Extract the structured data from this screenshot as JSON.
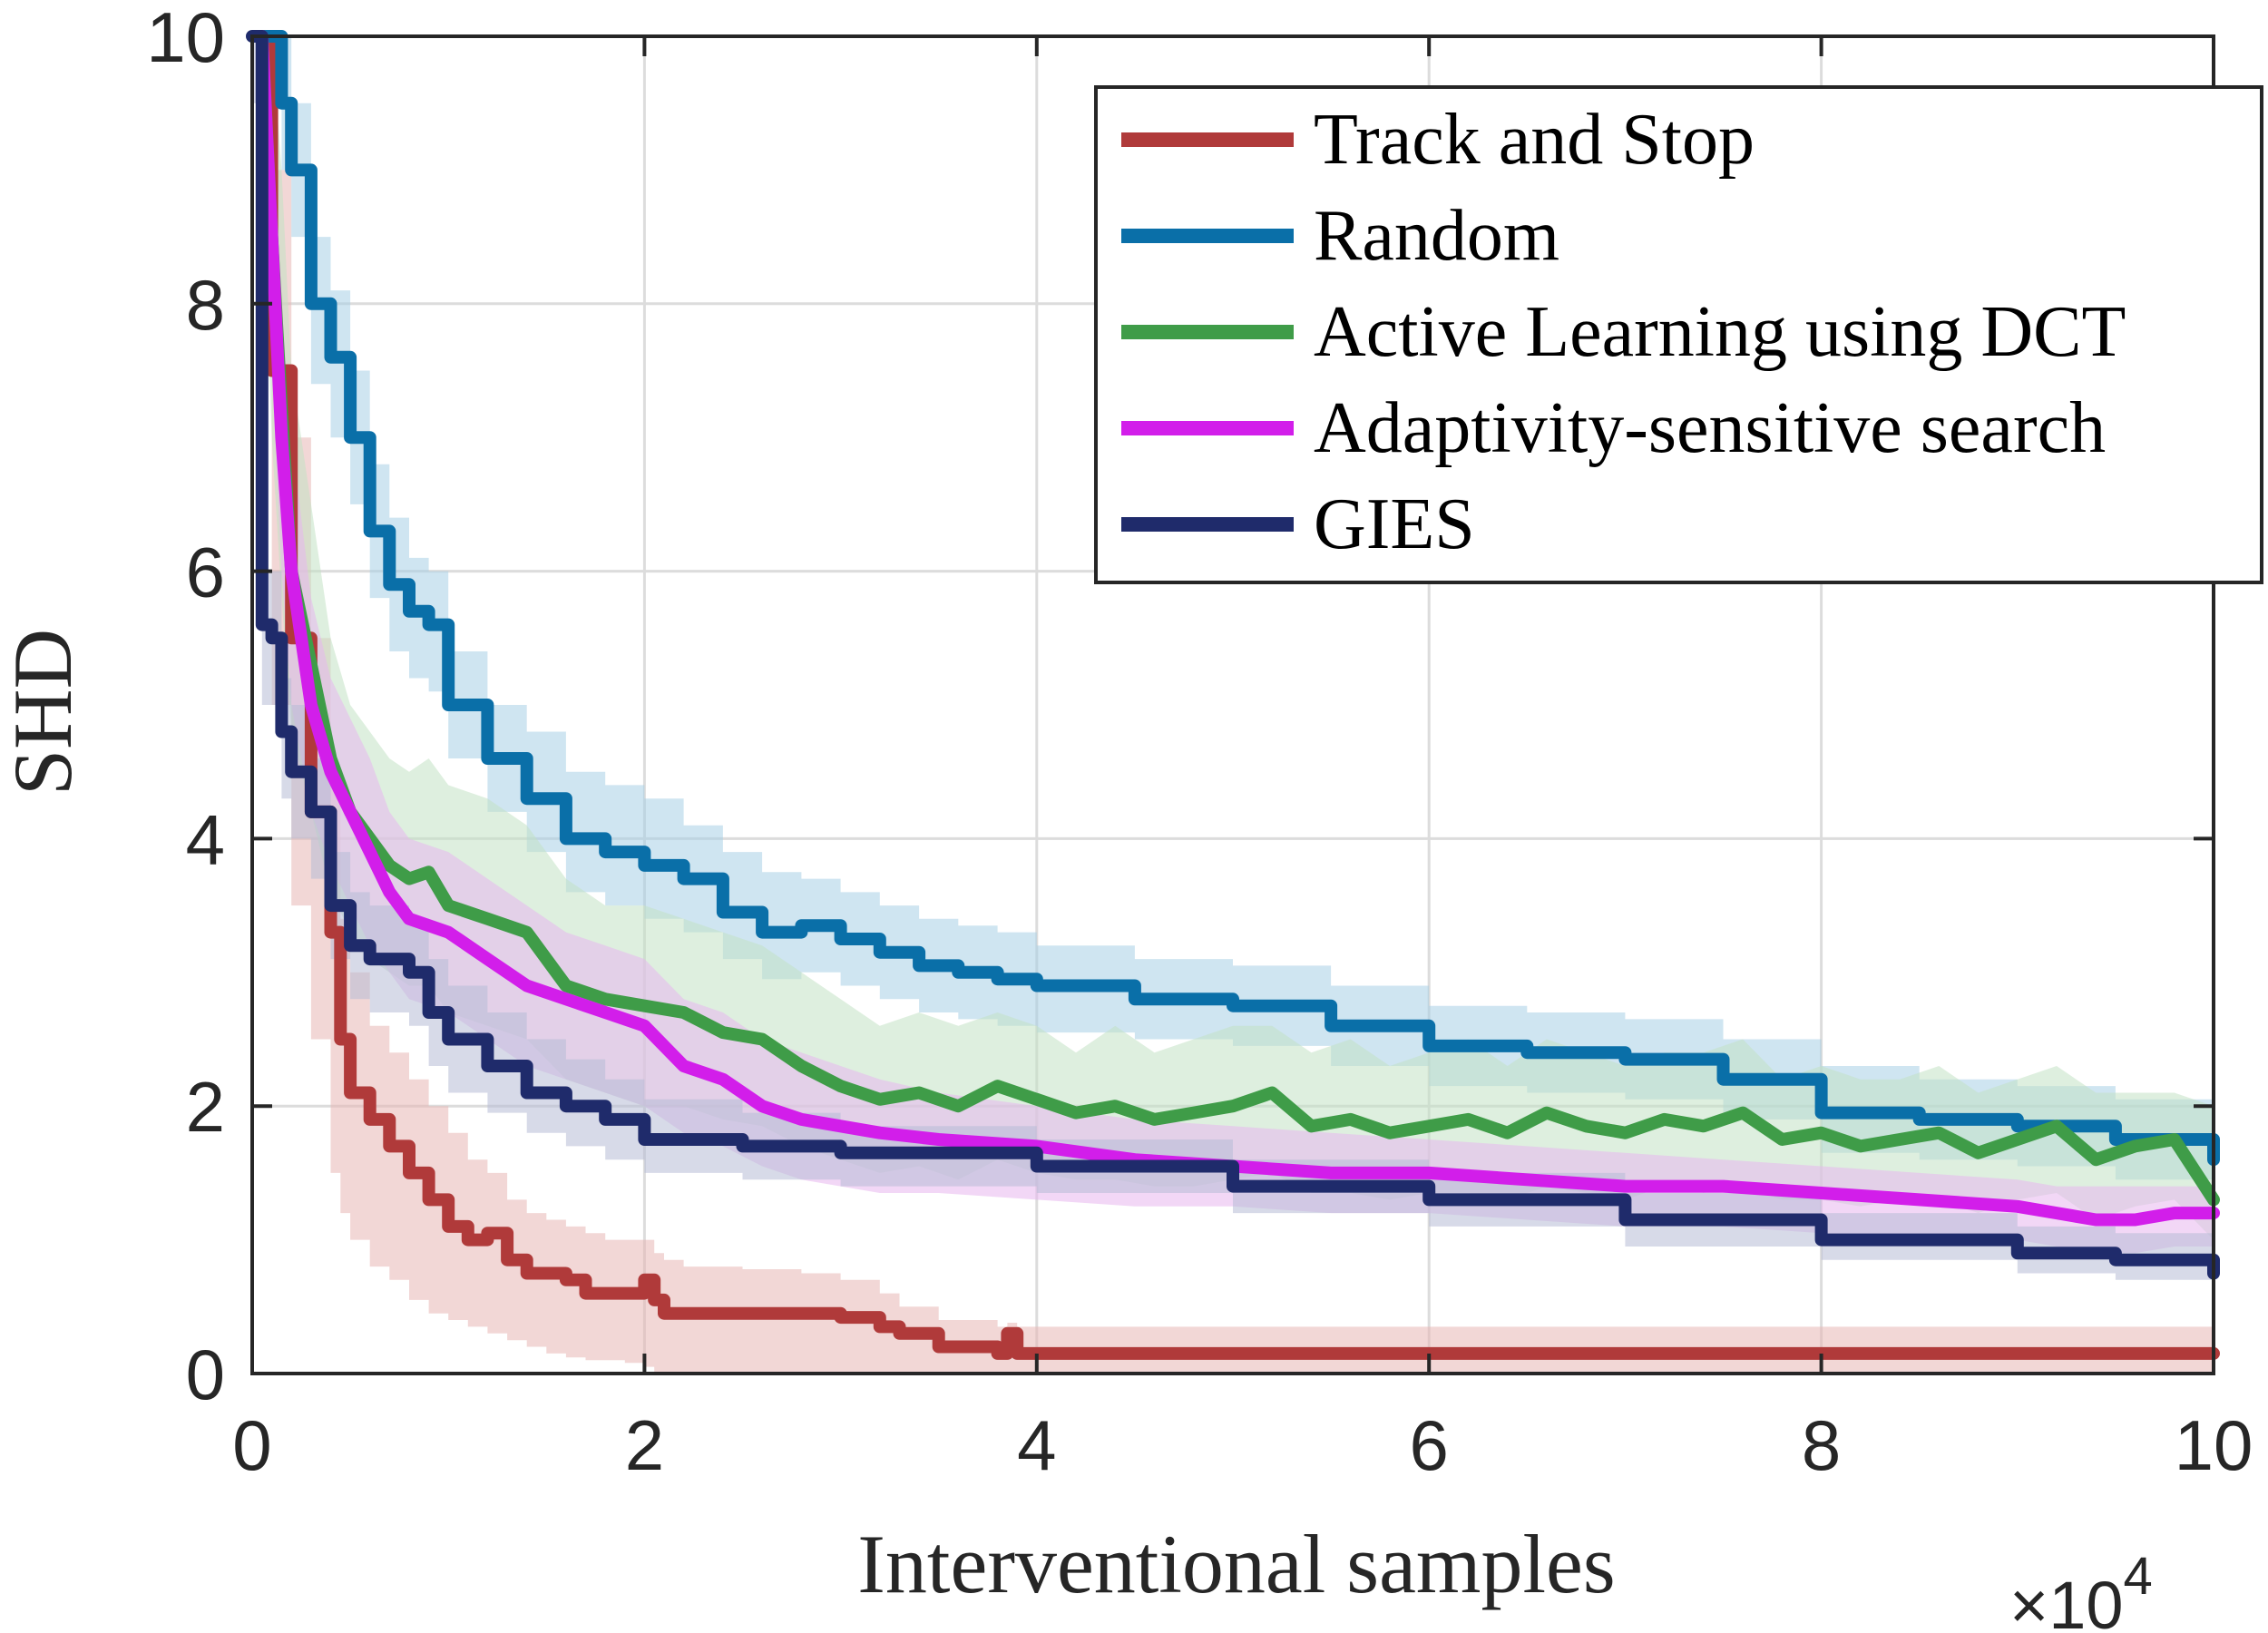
{
  "chart_data": {
    "type": "line",
    "title": "",
    "xlabel": "Interventional samples",
    "ylabel": "SHD",
    "x_exponent_base": "×10",
    "x_exponent_power": "4",
    "xlim": [
      0,
      10
    ],
    "ylim": [
      0,
      10
    ],
    "xticks": [
      0,
      2,
      4,
      6,
      8,
      10
    ],
    "yticks": [
      0,
      2,
      4,
      6,
      8,
      10
    ],
    "xtick_labels": [
      "0",
      "2",
      "4",
      "6",
      "8",
      "10"
    ],
    "ytick_labels": [
      "0",
      "2",
      "4",
      "6",
      "8",
      "10"
    ],
    "grid": true,
    "legend_position": "top-right",
    "series": [
      {
        "name": "Track and Stop",
        "color": "#b03a3a",
        "band_color": "#e8b7b5",
        "step": true,
        "x": [
          0.03,
          0.1,
          0.2,
          0.3,
          0.4,
          0.45,
          0.5,
          0.6,
          0.7,
          0.8,
          0.9,
          1.0,
          1.1,
          1.2,
          1.3,
          1.4,
          1.5,
          1.6,
          1.7,
          1.8,
          1.9,
          2.0,
          2.05,
          2.1,
          2.2,
          2.5,
          2.8,
          3.0,
          3.2,
          3.3,
          3.5,
          3.8,
          3.85,
          3.9,
          4.0,
          5.0,
          6.0,
          7.0,
          8.0,
          9.0,
          10.0
        ],
        "y": [
          10.0,
          7.5,
          5.5,
          4.2,
          3.3,
          2.5,
          2.1,
          1.9,
          1.7,
          1.5,
          1.3,
          1.1,
          1.0,
          1.05,
          0.85,
          0.75,
          0.75,
          0.7,
          0.6,
          0.6,
          0.6,
          0.7,
          0.55,
          0.45,
          0.45,
          0.45,
          0.45,
          0.42,
          0.35,
          0.3,
          0.2,
          0.15,
          0.3,
          0.15,
          0.15,
          0.15,
          0.15,
          0.15,
          0.15,
          0.15,
          0.15
        ],
        "upper": [
          10.0,
          9.0,
          7.0,
          5.5,
          4.5,
          3.4,
          3.0,
          2.6,
          2.4,
          2.2,
          2.0,
          1.8,
          1.6,
          1.5,
          1.3,
          1.2,
          1.15,
          1.1,
          1.05,
          1.0,
          1.0,
          1.0,
          0.9,
          0.85,
          0.8,
          0.78,
          0.75,
          0.7,
          0.6,
          0.5,
          0.4,
          0.35,
          0.38,
          0.35,
          0.35,
          0.35,
          0.35,
          0.35,
          0.35,
          0.35,
          0.35
        ],
        "lower": [
          8.0,
          5.0,
          3.5,
          2.5,
          1.5,
          1.2,
          1.0,
          0.8,
          0.7,
          0.55,
          0.45,
          0.4,
          0.35,
          0.3,
          0.25,
          0.2,
          0.15,
          0.12,
          0.1,
          0.1,
          0.08,
          0.05,
          0.0,
          0.0,
          0.0,
          0.0,
          0.0,
          0.0,
          0.0,
          0.0,
          0.0,
          0.0,
          0.0,
          0.0,
          0.0,
          0.0,
          0.0,
          0.0,
          0.0,
          0.0,
          0.0
        ]
      },
      {
        "name": "Random",
        "color": "#0a6fa8",
        "band_color": "#a8cfe5",
        "step": true,
        "x": [
          0.05,
          0.15,
          0.2,
          0.3,
          0.4,
          0.5,
          0.6,
          0.7,
          0.8,
          0.9,
          1.0,
          1.2,
          1.4,
          1.6,
          1.8,
          2.0,
          2.2,
          2.4,
          2.6,
          2.8,
          3.0,
          3.2,
          3.4,
          3.6,
          3.8,
          4.0,
          4.5,
          5.0,
          5.5,
          6.0,
          6.5,
          7.0,
          7.5,
          8.0,
          8.5,
          9.0,
          9.5,
          10.0
        ],
        "y": [
          10.0,
          9.5,
          9.0,
          8.0,
          7.6,
          7.0,
          6.3,
          5.9,
          5.7,
          5.6,
          5.0,
          4.6,
          4.3,
          4.0,
          3.9,
          3.8,
          3.7,
          3.45,
          3.3,
          3.35,
          3.25,
          3.15,
          3.05,
          3.0,
          2.95,
          2.9,
          2.8,
          2.75,
          2.6,
          2.45,
          2.4,
          2.35,
          2.2,
          1.95,
          1.9,
          1.85,
          1.75,
          1.6
        ],
        "upper": [
          10.0,
          10.0,
          9.5,
          8.5,
          8.1,
          7.5,
          6.8,
          6.4,
          6.1,
          6.0,
          5.4,
          5.0,
          4.8,
          4.5,
          4.4,
          4.3,
          4.1,
          3.9,
          3.75,
          3.7,
          3.6,
          3.5,
          3.4,
          3.35,
          3.3,
          3.2,
          3.1,
          3.05,
          2.9,
          2.75,
          2.7,
          2.65,
          2.5,
          2.3,
          2.2,
          2.15,
          2.05,
          1.95
        ],
        "lower": [
          9.5,
          9.0,
          8.5,
          7.4,
          7.0,
          6.5,
          5.8,
          5.4,
          5.2,
          5.1,
          4.6,
          4.2,
          3.9,
          3.6,
          3.5,
          3.4,
          3.3,
          3.1,
          2.95,
          3.0,
          2.9,
          2.8,
          2.7,
          2.65,
          2.6,
          2.55,
          2.5,
          2.45,
          2.3,
          2.15,
          2.1,
          2.05,
          1.9,
          1.65,
          1.6,
          1.55,
          1.45,
          1.3
        ]
      },
      {
        "name": "Active Learning using DCT",
        "color": "#3f9c48",
        "band_color": "#c3e1c4",
        "step": false,
        "x": [
          0.05,
          0.1,
          0.15,
          0.2,
          0.3,
          0.4,
          0.5,
          0.6,
          0.7,
          0.8,
          0.9,
          1.0,
          1.2,
          1.4,
          1.6,
          1.8,
          2.0,
          2.2,
          2.4,
          2.6,
          2.8,
          3.0,
          3.2,
          3.4,
          3.6,
          3.8,
          4.0,
          4.2,
          4.4,
          4.6,
          4.8,
          5.0,
          5.2,
          5.4,
          5.6,
          5.8,
          6.0,
          6.2,
          6.4,
          6.6,
          6.8,
          7.0,
          7.2,
          7.4,
          7.6,
          7.8,
          8.0,
          8.2,
          8.4,
          8.6,
          8.8,
          9.0,
          9.2,
          9.4,
          9.6,
          9.8,
          10.0
        ],
        "y": [
          10.0,
          8.5,
          7.2,
          6.0,
          5.3,
          4.6,
          4.2,
          4.0,
          3.8,
          3.7,
          3.75,
          3.5,
          3.4,
          3.3,
          2.9,
          2.8,
          2.75,
          2.7,
          2.55,
          2.5,
          2.3,
          2.15,
          2.05,
          2.1,
          2.0,
          2.15,
          2.05,
          1.95,
          2.0,
          1.9,
          1.95,
          2.0,
          2.1,
          1.85,
          1.9,
          1.8,
          1.85,
          1.9,
          1.8,
          1.95,
          1.85,
          1.8,
          1.9,
          1.85,
          1.95,
          1.75,
          1.8,
          1.7,
          1.75,
          1.8,
          1.65,
          1.75,
          1.85,
          1.6,
          1.7,
          1.75,
          1.3
        ],
        "upper": [
          10.0,
          10.0,
          9.0,
          7.5,
          6.5,
          5.5,
          5.0,
          4.8,
          4.6,
          4.5,
          4.6,
          4.4,
          4.3,
          4.1,
          3.7,
          3.5,
          3.5,
          3.4,
          3.3,
          3.2,
          3.0,
          2.8,
          2.6,
          2.7,
          2.6,
          2.7,
          2.6,
          2.4,
          2.6,
          2.4,
          2.5,
          2.6,
          2.6,
          2.4,
          2.5,
          2.3,
          2.4,
          2.5,
          2.3,
          2.5,
          2.4,
          2.3,
          2.4,
          2.4,
          2.5,
          2.2,
          2.3,
          2.2,
          2.2,
          2.3,
          2.1,
          2.2,
          2.3,
          2.1,
          2.1,
          2.1,
          2.0
        ],
        "lower": [
          9.0,
          7.0,
          5.8,
          4.8,
          4.2,
          3.6,
          3.3,
          3.1,
          3.0,
          2.9,
          2.9,
          2.7,
          2.6,
          2.5,
          2.2,
          2.1,
          2.0,
          2.0,
          1.9,
          1.85,
          1.7,
          1.6,
          1.5,
          1.55,
          1.45,
          1.6,
          1.5,
          1.45,
          1.45,
          1.4,
          1.4,
          1.45,
          1.5,
          1.35,
          1.35,
          1.3,
          1.35,
          1.35,
          1.3,
          1.4,
          1.35,
          1.3,
          1.4,
          1.35,
          1.4,
          1.3,
          1.3,
          1.25,
          1.3,
          1.3,
          1.2,
          1.3,
          1.35,
          1.15,
          1.25,
          1.3,
          1.0
        ]
      },
      {
        "name": "Adaptivity-sensitive search",
        "color": "#d21eea",
        "band_color": "#e8b6ef",
        "step": false,
        "x": [
          0.05,
          0.1,
          0.15,
          0.2,
          0.3,
          0.4,
          0.5,
          0.6,
          0.7,
          0.8,
          1.0,
          1.2,
          1.4,
          1.6,
          1.8,
          2.0,
          2.2,
          2.4,
          2.6,
          2.8,
          3.0,
          3.2,
          3.5,
          4.0,
          4.5,
          5.0,
          5.5,
          6.0,
          6.5,
          7.0,
          7.5,
          8.0,
          8.5,
          9.0,
          9.2,
          9.4,
          9.6,
          9.8,
          10.0
        ],
        "y": [
          10.0,
          8.5,
          7.0,
          6.0,
          5.0,
          4.5,
          4.2,
          3.9,
          3.6,
          3.4,
          3.3,
          3.1,
          2.9,
          2.8,
          2.7,
          2.6,
          2.3,
          2.2,
          2.0,
          1.9,
          1.85,
          1.8,
          1.75,
          1.7,
          1.6,
          1.55,
          1.5,
          1.5,
          1.45,
          1.4,
          1.4,
          1.35,
          1.3,
          1.25,
          1.2,
          1.15,
          1.15,
          1.2,
          1.2
        ],
        "upper": [
          10.0,
          9.5,
          8.0,
          7.0,
          5.8,
          5.2,
          4.9,
          4.6,
          4.2,
          4.0,
          3.9,
          3.7,
          3.5,
          3.3,
          3.2,
          3.1,
          2.8,
          2.7,
          2.5,
          2.4,
          2.3,
          2.2,
          2.1,
          2.0,
          1.9,
          1.85,
          1.8,
          1.75,
          1.7,
          1.65,
          1.6,
          1.55,
          1.5,
          1.45,
          1.4,
          1.4,
          1.4,
          1.4,
          1.4
        ],
        "lower": [
          9.0,
          7.5,
          6.0,
          5.0,
          4.2,
          3.8,
          3.5,
          3.2,
          3.0,
          2.8,
          2.7,
          2.5,
          2.3,
          2.2,
          2.1,
          2.0,
          1.8,
          1.7,
          1.55,
          1.45,
          1.4,
          1.35,
          1.35,
          1.3,
          1.25,
          1.25,
          1.2,
          1.2,
          1.15,
          1.1,
          1.1,
          1.05,
          1.0,
          1.0,
          0.95,
          0.9,
          0.9,
          0.95,
          0.95
        ]
      },
      {
        "name": "GIES",
        "color": "#1f2b6b",
        "band_color": "#b6bcd6",
        "step": true,
        "x": [
          0.0,
          0.05,
          0.1,
          0.15,
          0.2,
          0.3,
          0.4,
          0.5,
          0.6,
          0.8,
          0.9,
          1.0,
          1.2,
          1.4,
          1.6,
          1.8,
          2.0,
          2.5,
          3.0,
          4.0,
          5.0,
          6.0,
          7.0,
          8.0,
          9.0,
          9.5,
          10.0
        ],
        "y": [
          10.0,
          5.6,
          5.5,
          4.8,
          4.5,
          4.2,
          3.5,
          3.2,
          3.1,
          3.0,
          2.7,
          2.5,
          2.3,
          2.1,
          2.0,
          1.9,
          1.75,
          1.7,
          1.65,
          1.55,
          1.4,
          1.3,
          1.15,
          1.0,
          0.9,
          0.85,
          0.75
        ],
        "upper": [
          10.0,
          6.0,
          6.0,
          5.2,
          5.0,
          4.6,
          3.9,
          3.6,
          3.5,
          3.4,
          3.1,
          2.9,
          2.7,
          2.5,
          2.35,
          2.2,
          2.05,
          1.95,
          1.85,
          1.75,
          1.6,
          1.5,
          1.35,
          1.2,
          1.1,
          1.05,
          0.95
        ],
        "lower": [
          9.5,
          5.0,
          5.0,
          4.3,
          4.0,
          3.7,
          3.1,
          2.8,
          2.7,
          2.6,
          2.3,
          2.1,
          1.95,
          1.8,
          1.7,
          1.6,
          1.5,
          1.45,
          1.4,
          1.35,
          1.2,
          1.1,
          0.95,
          0.85,
          0.75,
          0.7,
          0.6
        ]
      }
    ]
  }
}
